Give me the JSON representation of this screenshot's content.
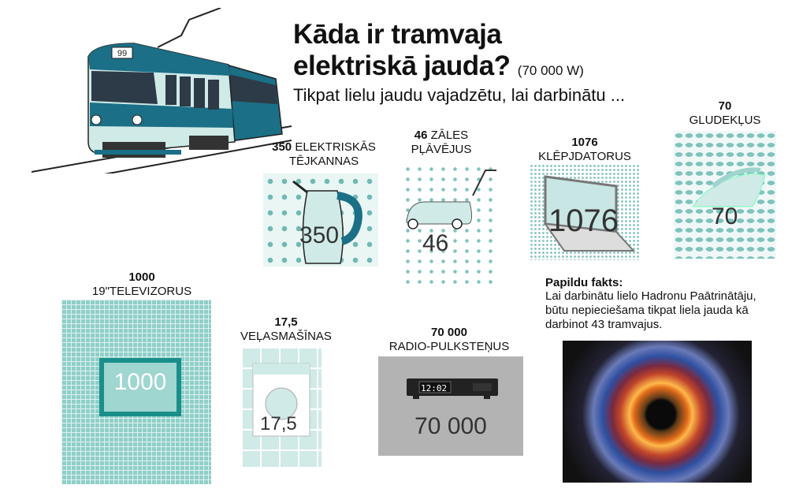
{
  "title": {
    "line1": "Kāda ir tramvaja",
    "line2": "elektriskā jauda?",
    "power": "(70 000 W)"
  },
  "subtitle": "Tikpat lielu jaudu vajadzētu, lai darbinātu ...",
  "tram": {
    "number": "99"
  },
  "items": {
    "kettles": {
      "count": "350",
      "label": "ELEKTRISKĀS TĒJKANNAS",
      "big": "350"
    },
    "mowers": {
      "count": "46",
      "label": "ZĀLES PĻĀVĒJUS",
      "big": "46"
    },
    "laptops": {
      "count": "1076",
      "label": "KLĒPJDATORUS",
      "big": "1076"
    },
    "irons": {
      "count": "70",
      "label": "GLUDEKĻUS",
      "big": "70"
    },
    "tvs": {
      "count": "1000",
      "label": "19\"TELEVIZORUS",
      "big": "1000"
    },
    "washers": {
      "count": "17,5",
      "label": "VEĻASMAŠĪNAS",
      "big": "17,5"
    },
    "radios": {
      "count": "70 000",
      "label": "RADIO-PULKSTEŅUS",
      "big": "70 000",
      "display": "12:02"
    }
  },
  "fact": {
    "title": "Papildu fakts:",
    "line1": "Lai darbinātu lielo Hadronu Paātrinātāju,",
    "line2": "būtu nepieciešama tikpat liela jauda kā",
    "line3": "darbinot 43 tramvajus."
  },
  "colors": {
    "teal": "#0f6f86",
    "light_teal": "#c8e6e3",
    "grey": "#b3b3b3"
  }
}
